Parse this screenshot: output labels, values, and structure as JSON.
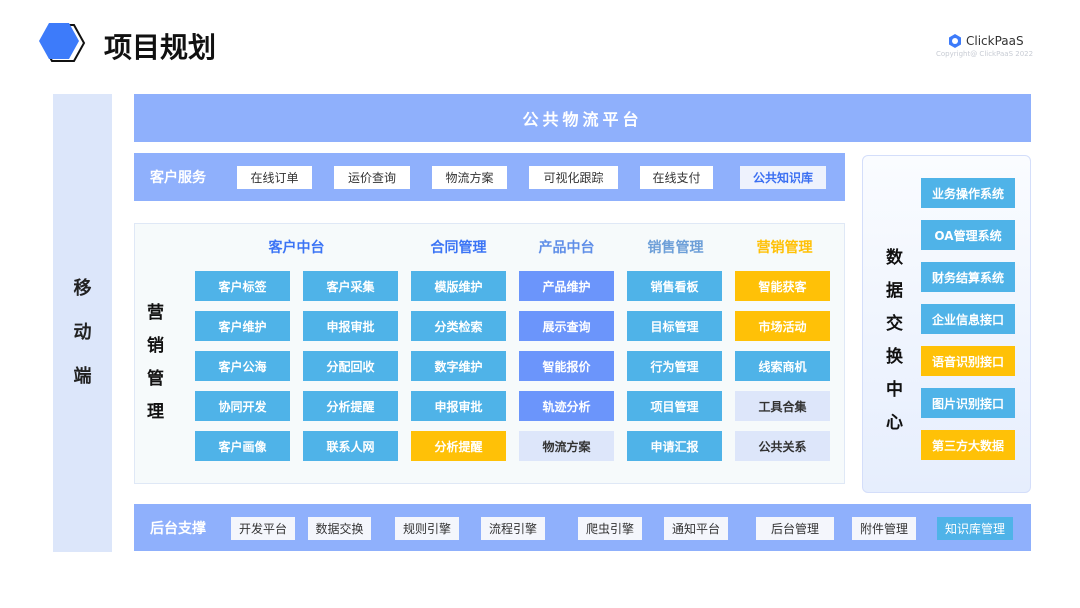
{
  "header": {
    "title": "项目规划",
    "logo": "ClickPaaS",
    "copyright": "Copyright@ ClickPaaS 2022"
  },
  "colors": {
    "blue": "#4fb3e8",
    "indigo": "#6b95fb",
    "yellow": "#ffc107",
    "light": "#dde6fa",
    "bar": "#8fb0fc"
  },
  "mobile": {
    "label": [
      "移",
      "动",
      "端"
    ]
  },
  "platform": {
    "label": "公共物流平台"
  },
  "customer_service": {
    "label": "客户服务",
    "items": [
      {
        "label": "在线订单"
      },
      {
        "label": "运价查询"
      },
      {
        "label": "物流方案"
      },
      {
        "label": "可视化跟踪"
      },
      {
        "label": "在线支付"
      },
      {
        "label": "公共知识库",
        "highlight": true
      }
    ]
  },
  "marketing": {
    "label": [
      "营",
      "销",
      "管",
      "理"
    ],
    "headers": [
      {
        "label": "客户中台",
        "color": "#3b74f5"
      },
      {
        "label": "合同管理",
        "color": "#3b74f5"
      },
      {
        "label": "产品中台",
        "color": "#5f8ee8"
      },
      {
        "label": "销售管理",
        "color": "#6d9fd8"
      },
      {
        "label": "营销管理",
        "color": "#ffc107"
      }
    ],
    "rows": [
      [
        {
          "label": "客户标签",
          "type": "blue"
        },
        {
          "label": "客户采集",
          "type": "blue"
        },
        {
          "label": "模版维护",
          "type": "blue"
        },
        {
          "label": "产品维护",
          "type": "indigo"
        },
        {
          "label": "销售看板",
          "type": "blue"
        },
        {
          "label": "智能获客",
          "type": "yellow"
        }
      ],
      [
        {
          "label": "客户维护",
          "type": "blue"
        },
        {
          "label": "申报审批",
          "type": "blue"
        },
        {
          "label": "分类检索",
          "type": "blue"
        },
        {
          "label": "展示查询",
          "type": "indigo"
        },
        {
          "label": "目标管理",
          "type": "blue"
        },
        {
          "label": "市场活动",
          "type": "yellow"
        }
      ],
      [
        {
          "label": "客户公海",
          "type": "blue"
        },
        {
          "label": "分配回收",
          "type": "blue"
        },
        {
          "label": "数字维护",
          "type": "blue"
        },
        {
          "label": "智能报价",
          "type": "indigo"
        },
        {
          "label": "行为管理",
          "type": "blue"
        },
        {
          "label": "线索商机",
          "type": "blue"
        }
      ],
      [
        {
          "label": "协同开发",
          "type": "blue"
        },
        {
          "label": "分析提醒",
          "type": "blue"
        },
        {
          "label": "申报审批",
          "type": "blue"
        },
        {
          "label": "轨迹分析",
          "type": "indigo"
        },
        {
          "label": "项目管理",
          "type": "blue"
        },
        {
          "label": "工具合集",
          "type": "light"
        }
      ],
      [
        {
          "label": "客户画像",
          "type": "blue"
        },
        {
          "label": "联系人网",
          "type": "blue"
        },
        {
          "label": "分析提醒",
          "type": "yellow"
        },
        {
          "label": "物流方案",
          "type": "light"
        },
        {
          "label": "申请汇报",
          "type": "blue"
        },
        {
          "label": "公共关系",
          "type": "light"
        }
      ]
    ]
  },
  "data_exchange": {
    "label": [
      "数",
      "据",
      "交",
      "换",
      "中",
      "心"
    ],
    "items": [
      {
        "label": "业务操作系统",
        "type": "blue"
      },
      {
        "label": "OA管理系统",
        "type": "blue"
      },
      {
        "label": "财务结算系统",
        "type": "blue"
      },
      {
        "label": "企业信息接口",
        "type": "blue"
      },
      {
        "label": "语音识别接口",
        "type": "yellow"
      },
      {
        "label": "图片识别接口",
        "type": "blue"
      },
      {
        "label": "第三方大数据",
        "type": "yellow"
      }
    ]
  },
  "backend": {
    "label": "后台支撑",
    "items": [
      {
        "label": "开发平台"
      },
      {
        "label": "数据交换"
      },
      {
        "label": "规则引擎"
      },
      {
        "label": "流程引擎"
      },
      {
        "label": "爬虫引擎"
      },
      {
        "label": "通知平台"
      },
      {
        "label": "后台管理"
      },
      {
        "label": "附件管理"
      },
      {
        "label": "知识库管理",
        "highlight": true
      }
    ]
  }
}
